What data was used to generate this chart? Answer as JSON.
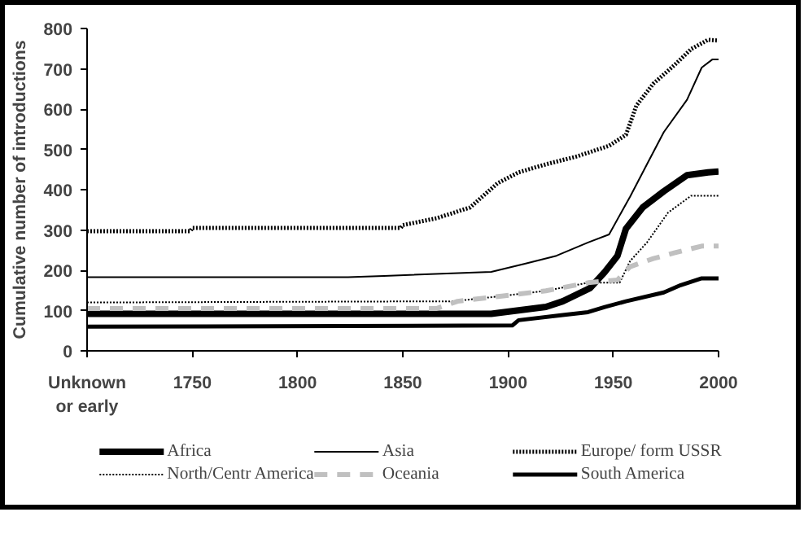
{
  "chart_data": {
    "type": "line",
    "ylabel": "Cumulative number of introductions",
    "xlim": [
      1700,
      2000
    ],
    "xticks": [
      {
        "value": 1700,
        "label": "Unknown\nor early"
      },
      1750,
      1800,
      1850,
      1900,
      1950,
      2000
    ],
    "ylim": [
      0,
      800
    ],
    "yticks": [
      0,
      100,
      200,
      300,
      400,
      500,
      600,
      700,
      800
    ],
    "grid": false,
    "legend": "bottom",
    "series": [
      {
        "name": "Africa",
        "color": "#000000",
        "line_style": "solid",
        "x": [
          1700,
          1892,
          1918,
          1926,
          1939,
          1946,
          1952,
          1956,
          1964,
          1974,
          1985,
          1995,
          2000
        ],
        "values": [
          92,
          92,
          109,
          123,
          156,
          196,
          236,
          303,
          356,
          396,
          436,
          443,
          445
        ]
      },
      {
        "name": "Asia",
        "color": "#000000",
        "line_style": "solid",
        "x": [
          1700,
          1824,
          1841,
          1892,
          1908,
          1923,
          1938,
          1948,
          1958,
          1966,
          1974,
          1985,
          1992,
          1997,
          2000
        ],
        "values": [
          183,
          183,
          186,
          196,
          216,
          236,
          269,
          289,
          383,
          463,
          543,
          623,
          703,
          723,
          723
        ]
      },
      {
        "name": "Europe/ form USSR",
        "color": "#000000",
        "line_style": "dotted",
        "x": [
          1700,
          1749,
          1750,
          1849,
          1850,
          1866,
          1882,
          1895,
          1905,
          1918,
          1933,
          1948,
          1956,
          1961,
          1969,
          1979,
          1987,
          1995,
          2000
        ],
        "values": [
          297,
          297,
          305,
          305,
          312,
          329,
          356,
          416,
          443,
          463,
          483,
          509,
          536,
          609,
          663,
          709,
          749,
          772,
          770
        ]
      },
      {
        "name": "North/Centr America",
        "color": "#000000",
        "line_style": "dotted",
        "x": [
          1700,
          1874,
          1897,
          1918,
          1938,
          1953,
          1958,
          1966,
          1976,
          1987,
          2000
        ],
        "values": [
          120,
          123,
          136,
          149,
          169,
          169,
          223,
          269,
          343,
          385,
          385
        ]
      },
      {
        "name": "Oceania",
        "color": "#c0c0c0",
        "line_style": "dashed",
        "x": [
          1700,
          1866,
          1876,
          1897,
          1918,
          1938,
          1952,
          1958,
          1969,
          1979,
          1992,
          2000
        ],
        "values": [
          105,
          105,
          123,
          136,
          149,
          169,
          176,
          209,
          229,
          243,
          260,
          260
        ]
      },
      {
        "name": "South America",
        "color": "#000000",
        "line_style": "solid",
        "x": [
          1700,
          1902,
          1905,
          1926,
          1938,
          1946,
          1956,
          1974,
          1982,
          1992,
          2000
        ],
        "values": [
          60,
          63,
          76,
          89,
          96,
          109,
          123,
          145,
          163,
          180,
          180
        ]
      }
    ]
  }
}
